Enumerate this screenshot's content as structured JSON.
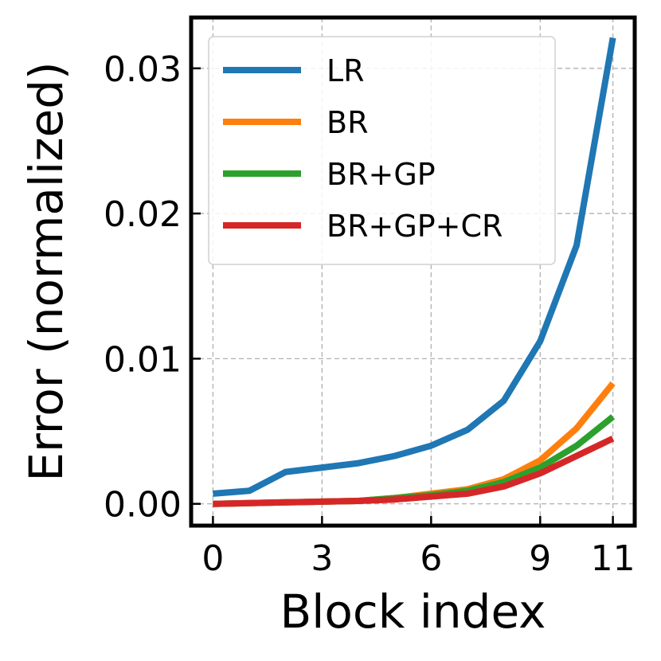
{
  "chart_data": {
    "type": "line",
    "title": "",
    "xlabel": "Block index",
    "ylabel": "Error (normalized)",
    "xlim": [
      -0.6,
      11.6
    ],
    "ylim": [
      -0.0015,
      0.0335
    ],
    "xticks": [
      0,
      3,
      6,
      9,
      11
    ],
    "xtick_labels": [
      "0",
      "3",
      "6",
      "9",
      "11"
    ],
    "yticks": [
      0.0,
      0.01,
      0.02,
      0.03
    ],
    "ytick_labels": [
      "0.00",
      "0.01",
      "0.02",
      "0.03"
    ],
    "grid": true,
    "legend_position": "top-left",
    "x": [
      0,
      1,
      2,
      3,
      4,
      5,
      6,
      7,
      8,
      9,
      10,
      11
    ],
    "series": [
      {
        "name": "LR",
        "color": "#1f77b4",
        "values": [
          0.0007,
          0.0009,
          0.0022,
          0.0025,
          0.0028,
          0.0033,
          0.004,
          0.0051,
          0.0071,
          0.0112,
          0.0178,
          0.0321
        ]
      },
      {
        "name": "BR",
        "color": "#ff7f0e",
        "values": [
          0.0,
          5e-05,
          0.0001,
          0.00015,
          0.0002,
          0.0004,
          0.0007,
          0.001,
          0.0017,
          0.003,
          0.0052,
          0.0083
        ]
      },
      {
        "name": "BR+GP",
        "color": "#2ca02c",
        "values": [
          0.0,
          5e-05,
          0.0001,
          0.00015,
          0.0002,
          0.0004,
          0.0006,
          0.0009,
          0.0015,
          0.0025,
          0.004,
          0.006
        ]
      },
      {
        "name": "BR+GP+CR",
        "color": "#d62728",
        "values": [
          0.0,
          5e-05,
          0.0001,
          0.00015,
          0.0002,
          0.0003,
          0.0005,
          0.0007,
          0.0012,
          0.0021,
          0.0033,
          0.0045
        ]
      }
    ]
  }
}
